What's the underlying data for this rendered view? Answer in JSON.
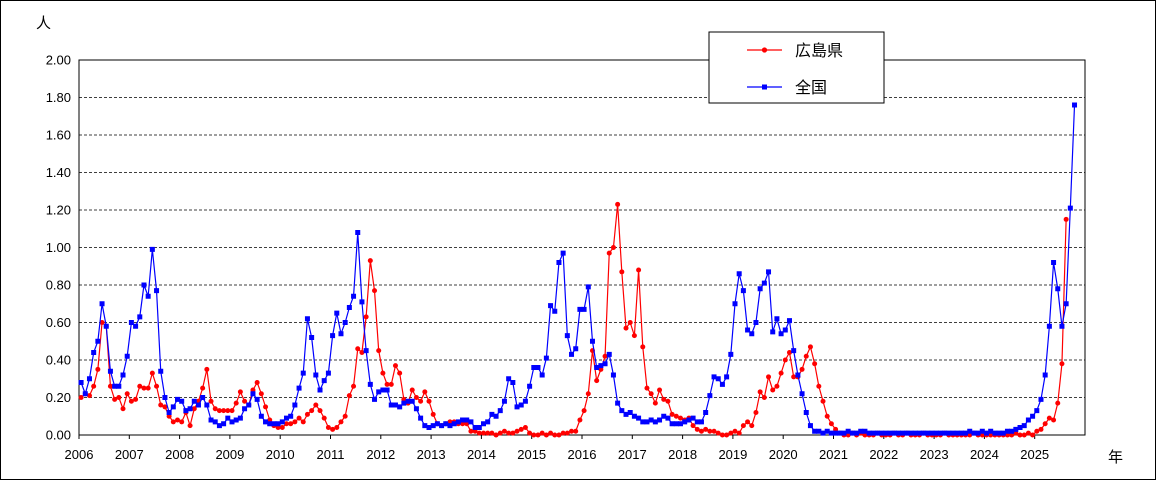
{
  "chart_data": {
    "type": "line",
    "y_unit": "人",
    "x_unit": "年",
    "ylim": [
      0,
      2.0
    ],
    "y_ticks": [
      "0.00",
      "0.20",
      "0.40",
      "0.60",
      "0.80",
      "1.00",
      "1.20",
      "1.40",
      "1.60",
      "1.80",
      "2.00"
    ],
    "x_tick_labels": [
      "2006",
      "2007",
      "2008",
      "2009",
      "2010",
      "2011",
      "2012",
      "2013",
      "2014",
      "2015",
      "2016",
      "2017",
      "2018",
      "2019",
      "2020",
      "2021",
      "2022",
      "2023",
      "2024",
      "2025"
    ],
    "grid": "horizontal dashed",
    "legend_position": "top-right",
    "points_per_year": 12,
    "series": [
      {
        "name": "広島県",
        "color": "#ff0000",
        "marker": "circle",
        "values": [
          0.2,
          0.22,
          0.21,
          0.26,
          0.35,
          0.6,
          0.58,
          0.26,
          0.19,
          0.2,
          0.14,
          0.22,
          0.18,
          0.19,
          0.26,
          0.25,
          0.25,
          0.33,
          0.26,
          0.16,
          0.15,
          0.1,
          0.07,
          0.08,
          0.07,
          0.12,
          0.05,
          0.14,
          0.18,
          0.25,
          0.35,
          0.18,
          0.14,
          0.13,
          0.13,
          0.13,
          0.13,
          0.17,
          0.23,
          0.18,
          0.16,
          0.24,
          0.28,
          0.22,
          0.15,
          0.08,
          0.05,
          0.04,
          0.04,
          0.06,
          0.06,
          0.07,
          0.09,
          0.07,
          0.11,
          0.13,
          0.16,
          0.13,
          0.09,
          0.04,
          0.03,
          0.04,
          0.07,
          0.1,
          0.21,
          0.26,
          0.46,
          0.44,
          0.63,
          0.93,
          0.77,
          0.45,
          0.33,
          0.27,
          0.27,
          0.37,
          0.33,
          0.19,
          0.17,
          0.24,
          0.2,
          0.18,
          0.23,
          0.18,
          0.11,
          0.06,
          0.05,
          0.06,
          0.07,
          0.07,
          0.06,
          0.06,
          0.06,
          0.02,
          0.02,
          0.01,
          0.01,
          0.01,
          0.01,
          0.0,
          0.01,
          0.02,
          0.01,
          0.01,
          0.02,
          0.03,
          0.04,
          0.01,
          0.0,
          0.0,
          0.01,
          0.0,
          0.01,
          0.0,
          0.0,
          0.01,
          0.01,
          0.02,
          0.02,
          0.08,
          0.13,
          0.22,
          0.45,
          0.29,
          0.35,
          0.42,
          0.97,
          1.0,
          1.23,
          0.87,
          0.57,
          0.6,
          0.53,
          0.88,
          0.47,
          0.25,
          0.22,
          0.17,
          0.24,
          0.19,
          0.18,
          0.11,
          0.1,
          0.09,
          0.08,
          0.09,
          0.05,
          0.03,
          0.02,
          0.03,
          0.02,
          0.02,
          0.01,
          0.0,
          0.0,
          0.01,
          0.02,
          0.01,
          0.05,
          0.07,
          0.05,
          0.12,
          0.23,
          0.2,
          0.31,
          0.24,
          0.26,
          0.33,
          0.4,
          0.44,
          0.31,
          0.31,
          0.35,
          0.42,
          0.47,
          0.38,
          0.26,
          0.18,
          0.1,
          0.06,
          0.03,
          0.01,
          0.0,
          0.0,
          0.01,
          0.0,
          0.01,
          0.0,
          0.0,
          0.0,
          0.01,
          0.0,
          0.0,
          0.0,
          0.01,
          0.0,
          0.0,
          0.01,
          0.0,
          0.0,
          0.0,
          0.01,
          0.0,
          0.0,
          0.0,
          0.0,
          0.01,
          0.0,
          0.0,
          0.0,
          0.0,
          0.0,
          0.0,
          0.01,
          0.0,
          0.0,
          0.0,
          0.0,
          0.0,
          0.0,
          0.0,
          0.0,
          0.0,
          0.01,
          0.0,
          0.0,
          0.01,
          0.0,
          0.02,
          0.03,
          0.06,
          0.09,
          0.08,
          0.17,
          0.38,
          1.15
        ]
      },
      {
        "name": "全国",
        "color": "#0000ff",
        "marker": "square",
        "values": [
          0.28,
          0.22,
          0.3,
          0.44,
          0.5,
          0.7,
          0.58,
          0.34,
          0.26,
          0.26,
          0.32,
          0.42,
          0.6,
          0.58,
          0.63,
          0.8,
          0.74,
          0.99,
          0.77,
          0.34,
          0.2,
          0.12,
          0.15,
          0.19,
          0.18,
          0.13,
          0.14,
          0.18,
          0.16,
          0.2,
          0.16,
          0.08,
          0.07,
          0.05,
          0.06,
          0.09,
          0.07,
          0.08,
          0.09,
          0.14,
          0.16,
          0.22,
          0.19,
          0.1,
          0.07,
          0.06,
          0.06,
          0.06,
          0.07,
          0.09,
          0.1,
          0.16,
          0.25,
          0.33,
          0.62,
          0.52,
          0.32,
          0.24,
          0.29,
          0.33,
          0.53,
          0.65,
          0.54,
          0.6,
          0.68,
          0.74,
          1.08,
          0.71,
          0.45,
          0.27,
          0.19,
          0.23,
          0.24,
          0.24,
          0.16,
          0.16,
          0.15,
          0.17,
          0.18,
          0.18,
          0.14,
          0.09,
          0.05,
          0.04,
          0.05,
          0.06,
          0.05,
          0.06,
          0.05,
          0.06,
          0.07,
          0.08,
          0.08,
          0.07,
          0.04,
          0.04,
          0.06,
          0.07,
          0.11,
          0.1,
          0.13,
          0.18,
          0.3,
          0.28,
          0.15,
          0.16,
          0.18,
          0.26,
          0.36,
          0.36,
          0.32,
          0.41,
          0.69,
          0.66,
          0.92,
          0.97,
          0.53,
          0.43,
          0.46,
          0.67,
          0.67,
          0.79,
          0.5,
          0.36,
          0.37,
          0.38,
          0.43,
          0.32,
          0.17,
          0.13,
          0.11,
          0.12,
          0.1,
          0.09,
          0.07,
          0.07,
          0.08,
          0.07,
          0.08,
          0.1,
          0.09,
          0.06,
          0.06,
          0.06,
          0.07,
          0.08,
          0.09,
          0.07,
          0.07,
          0.12,
          0.21,
          0.31,
          0.3,
          0.27,
          0.31,
          0.43,
          0.7,
          0.86,
          0.77,
          0.56,
          0.54,
          0.6,
          0.78,
          0.81,
          0.87,
          0.55,
          0.62,
          0.54,
          0.56,
          0.61,
          0.45,
          0.32,
          0.22,
          0.12,
          0.05,
          0.02,
          0.02,
          0.01,
          0.02,
          0.01,
          0.01,
          0.01,
          0.01,
          0.02,
          0.01,
          0.01,
          0.02,
          0.02,
          0.01,
          0.01,
          0.01,
          0.01,
          0.01,
          0.01,
          0.01,
          0.01,
          0.01,
          0.01,
          0.01,
          0.01,
          0.01,
          0.01,
          0.01,
          0.01,
          0.01,
          0.01,
          0.01,
          0.01,
          0.01,
          0.01,
          0.01,
          0.01,
          0.02,
          0.01,
          0.01,
          0.02,
          0.01,
          0.02,
          0.01,
          0.01,
          0.01,
          0.02,
          0.02,
          0.03,
          0.04,
          0.05,
          0.08,
          0.1,
          0.13,
          0.19,
          0.32,
          0.58,
          0.92,
          0.78,
          0.58,
          0.7,
          1.21,
          1.76
        ]
      }
    ]
  }
}
